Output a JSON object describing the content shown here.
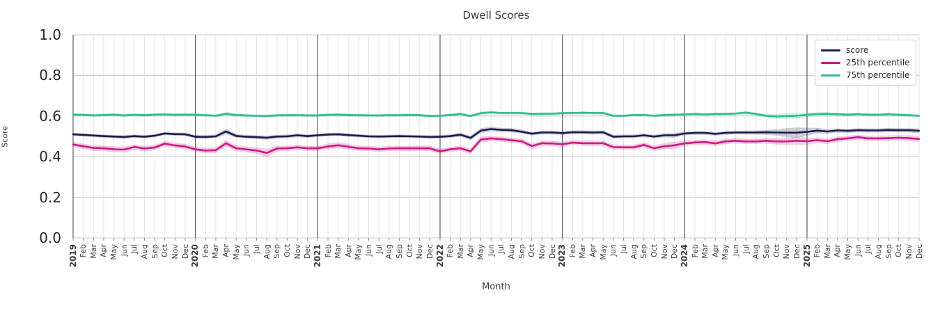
{
  "title": "Dwell Scores",
  "axes": {
    "ylabel": "Score",
    "xlabel": "Month"
  },
  "chart_data": {
    "type": "line",
    "title": "Dwell Scores",
    "xlabel": "Month",
    "ylabel": "Score",
    "ylim": [
      0.0,
      1.0
    ],
    "yticks": [
      0.0,
      0.2,
      0.4,
      0.6,
      0.8,
      1.0
    ],
    "grid": true,
    "legend_position": "upper right",
    "x_months": [
      "2019",
      "Feb",
      "Mar",
      "Apr",
      "May",
      "Jun",
      "Jul",
      "Aug",
      "Sep",
      "Oct",
      "Nov",
      "Dec",
      "2020",
      "Feb",
      "Mar",
      "Apr",
      "May",
      "Jun",
      "Jul",
      "Aug",
      "Sep",
      "Oct",
      "Nov",
      "Dec",
      "2021",
      "Feb",
      "Mar",
      "Apr",
      "May",
      "Jun",
      "Jul",
      "Aug",
      "Sep",
      "Oct",
      "Nov",
      "Dec",
      "2022",
      "Feb",
      "Mar",
      "Apr",
      "May",
      "Jun",
      "Jul",
      "Aug",
      "Sep",
      "Oct",
      "Nov",
      "Dec",
      "2023",
      "Feb",
      "Mar",
      "Apr",
      "May",
      "Jun",
      "Jul",
      "Aug",
      "Sep",
      "Oct",
      "Nov",
      "Dec",
      "2024",
      "Feb",
      "Mar",
      "Apr",
      "May",
      "Jun",
      "Jul",
      "Aug",
      "Sep",
      "Oct",
      "Nov",
      "Dec",
      "2025",
      "Feb",
      "Mar",
      "Apr",
      "May",
      "Jun",
      "Jul",
      "Aug",
      "Sep",
      "Oct",
      "Nov",
      "Dec"
    ],
    "series": [
      {
        "name": "score",
        "color": "#1b1b4f",
        "values": [
          0.51,
          0.507,
          0.504,
          0.501,
          0.499,
          0.497,
          0.501,
          0.498,
          0.503,
          0.514,
          0.511,
          0.51,
          0.498,
          0.497,
          0.5,
          0.524,
          0.502,
          0.498,
          0.496,
          0.493,
          0.499,
          0.5,
          0.505,
          0.501,
          0.505,
          0.509,
          0.51,
          0.506,
          0.503,
          0.5,
          0.499,
          0.5,
          0.501,
          0.5,
          0.499,
          0.497,
          0.498,
          0.501,
          0.508,
          0.492,
          0.528,
          0.536,
          0.532,
          0.53,
          0.523,
          0.513,
          0.519,
          0.519,
          0.516,
          0.52,
          0.52,
          0.519,
          0.52,
          0.498,
          0.5,
          0.5,
          0.505,
          0.499,
          0.505,
          0.505,
          0.514,
          0.517,
          0.517,
          0.512,
          0.517,
          0.519,
          0.519,
          0.519,
          0.52,
          0.519,
          0.518,
          0.518,
          0.522,
          0.528,
          0.524,
          0.529,
          0.527,
          0.53,
          0.529,
          0.529,
          0.531,
          0.53,
          0.53,
          0.527
        ],
        "band": [
          0.008,
          0.008,
          0.008,
          0.008,
          0.008,
          0.008,
          0.008,
          0.008,
          0.008,
          0.008,
          0.008,
          0.008,
          0.009,
          0.009,
          0.01,
          0.013,
          0.01,
          0.009,
          0.009,
          0.01,
          0.009,
          0.009,
          0.009,
          0.009,
          0.008,
          0.008,
          0.008,
          0.008,
          0.008,
          0.008,
          0.008,
          0.008,
          0.008,
          0.008,
          0.008,
          0.008,
          0.009,
          0.009,
          0.01,
          0.01,
          0.012,
          0.012,
          0.01,
          0.01,
          0.01,
          0.009,
          0.009,
          0.009,
          0.009,
          0.009,
          0.009,
          0.009,
          0.009,
          0.009,
          0.009,
          0.009,
          0.009,
          0.009,
          0.01,
          0.012,
          0.009,
          0.009,
          0.009,
          0.009,
          0.009,
          0.009,
          0.009,
          0.01,
          0.012,
          0.016,
          0.022,
          0.026,
          0.02,
          0.014,
          0.012,
          0.01,
          0.01,
          0.01,
          0.01,
          0.01,
          0.01,
          0.01,
          0.01,
          0.012
        ]
      },
      {
        "name": "25th percentile",
        "color": "#cc1a85",
        "values": [
          0.46,
          0.451,
          0.443,
          0.441,
          0.436,
          0.435,
          0.448,
          0.44,
          0.445,
          0.464,
          0.455,
          0.45,
          0.436,
          0.43,
          0.432,
          0.466,
          0.441,
          0.436,
          0.43,
          0.418,
          0.44,
          0.441,
          0.446,
          0.441,
          0.441,
          0.45,
          0.456,
          0.449,
          0.441,
          0.44,
          0.436,
          0.44,
          0.441,
          0.441,
          0.441,
          0.441,
          0.426,
          0.436,
          0.441,
          0.426,
          0.484,
          0.49,
          0.486,
          0.481,
          0.476,
          0.452,
          0.466,
          0.465,
          0.461,
          0.469,
          0.466,
          0.466,
          0.466,
          0.447,
          0.446,
          0.446,
          0.458,
          0.441,
          0.451,
          0.456,
          0.465,
          0.47,
          0.472,
          0.465,
          0.475,
          0.478,
          0.475,
          0.475,
          0.478,
          0.475,
          0.475,
          0.478,
          0.476,
          0.481,
          0.476,
          0.486,
          0.49,
          0.496,
          0.49,
          0.49,
          0.491,
          0.493,
          0.491,
          0.487
        ],
        "band": [
          0.013,
          0.013,
          0.014,
          0.014,
          0.015,
          0.015,
          0.013,
          0.014,
          0.013,
          0.013,
          0.013,
          0.013,
          0.013,
          0.013,
          0.014,
          0.016,
          0.015,
          0.015,
          0.016,
          0.021,
          0.014,
          0.013,
          0.013,
          0.013,
          0.013,
          0.015,
          0.015,
          0.014,
          0.013,
          0.013,
          0.013,
          0.013,
          0.013,
          0.013,
          0.013,
          0.013,
          0.013,
          0.013,
          0.013,
          0.014,
          0.015,
          0.014,
          0.013,
          0.013,
          0.013,
          0.015,
          0.013,
          0.013,
          0.013,
          0.013,
          0.013,
          0.013,
          0.013,
          0.013,
          0.013,
          0.013,
          0.013,
          0.014,
          0.015,
          0.017,
          0.013,
          0.013,
          0.013,
          0.013,
          0.013,
          0.013,
          0.013,
          0.013,
          0.014,
          0.015,
          0.018,
          0.02,
          0.018,
          0.014,
          0.014,
          0.013,
          0.013,
          0.013,
          0.013,
          0.013,
          0.013,
          0.013,
          0.014,
          0.016
        ]
      },
      {
        "name": "75th percentile",
        "color": "#2dbd8c",
        "values": [
          0.607,
          0.606,
          0.603,
          0.605,
          0.607,
          0.603,
          0.606,
          0.604,
          0.607,
          0.608,
          0.606,
          0.607,
          0.606,
          0.604,
          0.601,
          0.611,
          0.605,
          0.603,
          0.601,
          0.6,
          0.603,
          0.604,
          0.604,
          0.603,
          0.603,
          0.606,
          0.607,
          0.605,
          0.604,
          0.603,
          0.603,
          0.604,
          0.604,
          0.605,
          0.604,
          0.6,
          0.601,
          0.605,
          0.61,
          0.6,
          0.614,
          0.618,
          0.615,
          0.615,
          0.615,
          0.61,
          0.611,
          0.611,
          0.614,
          0.615,
          0.616,
          0.615,
          0.615,
          0.601,
          0.601,
          0.605,
          0.605,
          0.601,
          0.605,
          0.606,
          0.608,
          0.61,
          0.608,
          0.61,
          0.61,
          0.612,
          0.617,
          0.61,
          0.601,
          0.598,
          0.6,
          0.601,
          0.606,
          0.61,
          0.611,
          0.609,
          0.607,
          0.609,
          0.607,
          0.606,
          0.609,
          0.606,
          0.604,
          0.601
        ],
        "band": [
          0.007,
          0.007,
          0.007,
          0.007,
          0.007,
          0.007,
          0.007,
          0.007,
          0.007,
          0.007,
          0.007,
          0.007,
          0.007,
          0.007,
          0.008,
          0.01,
          0.008,
          0.007,
          0.007,
          0.008,
          0.007,
          0.007,
          0.007,
          0.007,
          0.007,
          0.007,
          0.007,
          0.007,
          0.007,
          0.007,
          0.007,
          0.007,
          0.007,
          0.007,
          0.007,
          0.007,
          0.007,
          0.007,
          0.008,
          0.008,
          0.009,
          0.008,
          0.007,
          0.007,
          0.007,
          0.007,
          0.007,
          0.007,
          0.007,
          0.007,
          0.007,
          0.007,
          0.007,
          0.007,
          0.007,
          0.007,
          0.007,
          0.007,
          0.008,
          0.009,
          0.007,
          0.007,
          0.007,
          0.007,
          0.007,
          0.007,
          0.008,
          0.008,
          0.009,
          0.012,
          0.014,
          0.015,
          0.012,
          0.009,
          0.008,
          0.008,
          0.008,
          0.008,
          0.008,
          0.008,
          0.008,
          0.008,
          0.008,
          0.009
        ]
      }
    ]
  }
}
